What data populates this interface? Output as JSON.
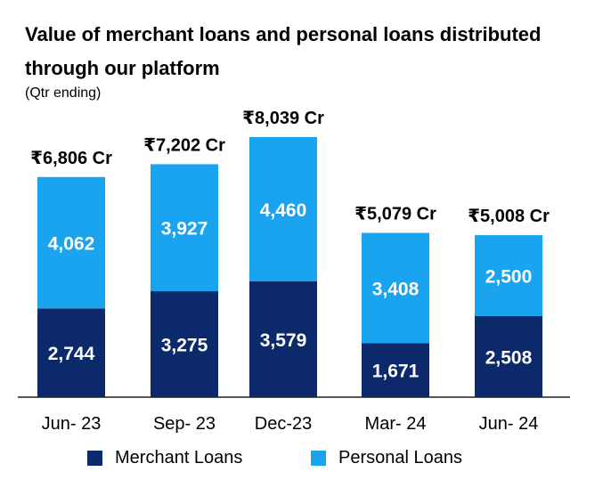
{
  "title": "Value of merchant loans and personal loans distributed through our platform",
  "subtitle": "(Qtr ending)",
  "colors": {
    "merchant": "#0c2a6b",
    "personal": "#1aa3ee",
    "axis": "#222222"
  },
  "legend": {
    "merchant_label": "Merchant Loans",
    "personal_label": "Personal Loans"
  },
  "chart_data": {
    "type": "bar",
    "stacked": true,
    "categories": [
      "Jun-23",
      "Sep-23",
      "Dec-23",
      "Mar-24",
      "Jun-24"
    ],
    "category_labels": [
      "Jun- 23",
      "Sep- 23",
      "Dec-23",
      "Mar- 24",
      "Jun- 24"
    ],
    "series": [
      {
        "name": "Merchant Loans",
        "values": [
          2744,
          3275,
          3579,
          1671,
          2508
        ],
        "labels": [
          "2,744",
          "3,275",
          "3,579",
          "1,671",
          "2,508"
        ]
      },
      {
        "name": "Personal Loans",
        "values": [
          4062,
          3927,
          4460,
          3408,
          2500
        ],
        "labels": [
          "4,062",
          "3,927",
          "4,460",
          "3,408",
          "2,500"
        ]
      }
    ],
    "totals": [
      6806,
      7202,
      8039,
      5079,
      5008
    ],
    "total_labels": [
      "₹6,806 Cr",
      "₹7,202 Cr",
      "₹8,039 Cr",
      "₹5,079 Cr",
      "₹5,008 Cr"
    ],
    "ylim": [
      0,
      8039
    ],
    "grid": false,
    "legend_position": "bottom"
  }
}
